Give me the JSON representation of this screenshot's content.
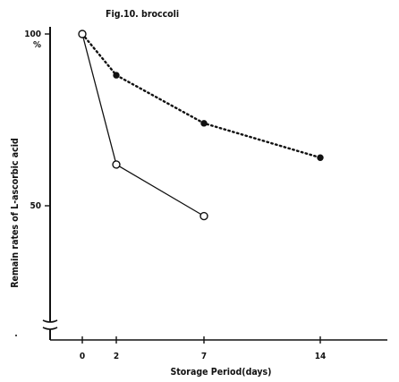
{
  "chart_data": {
    "type": "line",
    "title": "Fig.10. broccoli",
    "xlabel": "Storage Period(days)",
    "ylabel": "Remain rates of L-ascorbic acid",
    "x_tick_labels": [
      "0",
      "2",
      "7",
      "14"
    ],
    "y_tick_labels": [
      "100\n%",
      "50"
    ],
    "xlim": [
      -2,
      21
    ],
    "ylim": [
      0,
      100
    ],
    "y_axis_break": true,
    "grid": false,
    "legend": "none",
    "series": [
      {
        "style": "solid",
        "marker": "open-circle",
        "x": [
          0,
          2,
          7
        ],
        "y": [
          100,
          62,
          47
        ]
      },
      {
        "style": "dotted",
        "marker": "filled-circle",
        "x": [
          0,
          2,
          7,
          14
        ],
        "y": [
          100,
          88,
          74,
          64
        ]
      }
    ],
    "colors": {
      "ink": "#111111",
      "background": "#ffffff"
    }
  }
}
